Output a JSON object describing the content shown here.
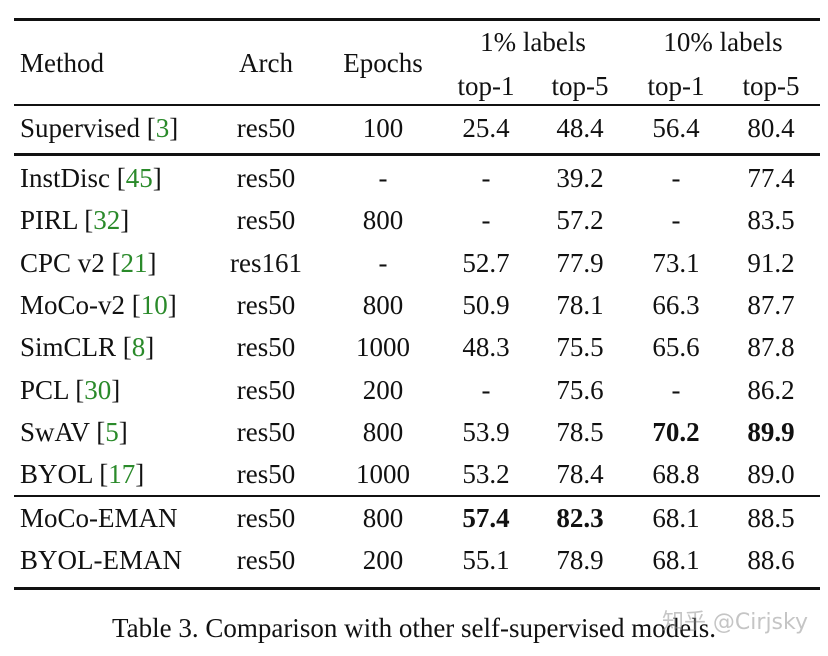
{
  "table": {
    "header": {
      "columns": [
        "Method",
        "Arch",
        "Epochs"
      ],
      "groups": [
        "1% labels",
        "10% labels"
      ],
      "sub": [
        "top-1",
        "top-5",
        "top-1",
        "top-5"
      ]
    },
    "groups": [
      [
        {
          "method": [
            "Supervised [",
            "3",
            "]"
          ],
          "cells": [
            "res50",
            "100",
            "25.4",
            "48.4",
            "56.4",
            "80.4"
          ],
          "bold": []
        }
      ],
      [
        {
          "method": [
            "InstDisc [",
            "45",
            "]"
          ],
          "cells": [
            "res50",
            "-",
            "-",
            "39.2",
            "-",
            "77.4"
          ],
          "bold": []
        },
        {
          "method": [
            "PIRL [",
            "32",
            "]"
          ],
          "cells": [
            "res50",
            "800",
            "-",
            "57.2",
            "-",
            "83.5"
          ],
          "bold": []
        },
        {
          "method": [
            "CPC v2 [",
            "21",
            "]"
          ],
          "cells": [
            "res161",
            "-",
            "52.7",
            "77.9",
            "73.1",
            "91.2"
          ],
          "bold": []
        },
        {
          "method": [
            "MoCo-v2 [",
            "10",
            "]"
          ],
          "cells": [
            "res50",
            "800",
            "50.9",
            "78.1",
            "66.3",
            "87.7"
          ],
          "bold": []
        },
        {
          "method": [
            "SimCLR [",
            "8",
            "]"
          ],
          "cells": [
            "res50",
            "1000",
            "48.3",
            "75.5",
            "65.6",
            "87.8"
          ],
          "bold": []
        },
        {
          "method": [
            "PCL [",
            "30",
            "]"
          ],
          "cells": [
            "res50",
            "200",
            "-",
            "75.6",
            "-",
            "86.2"
          ],
          "bold": []
        },
        {
          "method": [
            "SwAV [",
            "5",
            "]"
          ],
          "cells": [
            "res50",
            "800",
            "53.9",
            "78.5",
            "70.2",
            "89.9"
          ],
          "bold": [
            4,
            5
          ]
        },
        {
          "method": [
            "BYOL [",
            "17",
            "]"
          ],
          "cells": [
            "res50",
            "1000",
            "53.2",
            "78.4",
            "68.8",
            "89.0"
          ],
          "bold": []
        }
      ],
      [
        {
          "method": [
            "MoCo-EMAN"
          ],
          "cells": [
            "res50",
            "800",
            "57.4",
            "82.3",
            "68.1",
            "88.5"
          ],
          "bold": [
            2,
            3
          ]
        },
        {
          "method": [
            "BYOL-EMAN"
          ],
          "cells": [
            "res50",
            "200",
            "55.1",
            "78.9",
            "68.1",
            "88.6"
          ],
          "bold": []
        }
      ]
    ]
  },
  "caption": "Table 3. Comparison with other self-supervised models.",
  "watermark": "知乎 @Cirjsky"
}
